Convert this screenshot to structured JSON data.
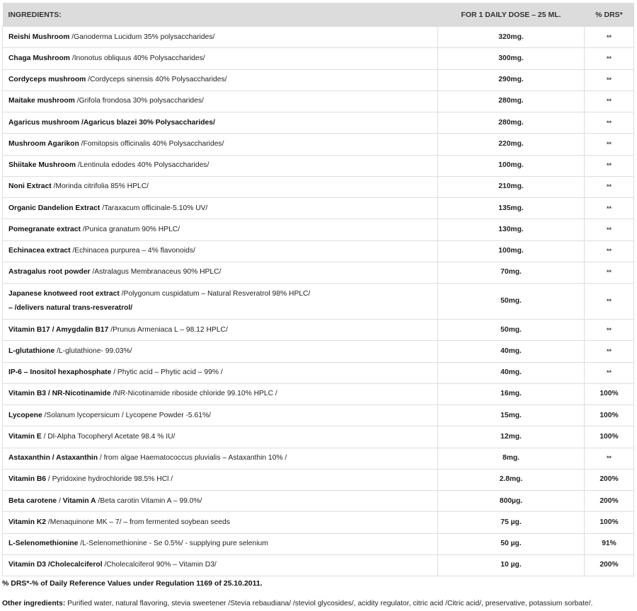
{
  "header": {
    "ingredients": "INGREDIENTS:",
    "dose": "FOR 1 DAILY DOSE – 25 ML.",
    "drs": "% DRS*"
  },
  "rows": [
    {
      "segments": [
        {
          "text": "Reishi Mushroom",
          "bold": true
        },
        {
          "text": " /Ganoderma Lucidum 35% polysaccharides/",
          "bold": false
        }
      ],
      "dose": "320mg.",
      "drs": "**"
    },
    {
      "segments": [
        {
          "text": "Chaga Mushroom",
          "bold": true
        },
        {
          "text": " /Inonotus obliquus 40% Polysaccharides/",
          "bold": false
        }
      ],
      "dose": "300mg.",
      "drs": "**"
    },
    {
      "segments": [
        {
          "text": "Cordyceps mushroom",
          "bold": true
        },
        {
          "text": " /Cordyceps sinensis 40% Polysaccharides/",
          "bold": false
        }
      ],
      "dose": "290mg.",
      "drs": "**"
    },
    {
      "segments": [
        {
          "text": "Maitake mushroom",
          "bold": true
        },
        {
          "text": " /Grifola frondosa 30% polysaccharides/",
          "bold": false
        }
      ],
      "dose": "280mg.",
      "drs": "**"
    },
    {
      "segments": [
        {
          "text": "Agaricus mushroom",
          "bold": true
        },
        {
          "text": " /Agaricus blazei 30% Polysaccharides/",
          "bold": true
        }
      ],
      "dose": "280mg.",
      "drs": "**"
    },
    {
      "segments": [
        {
          "text": "Mushroom Agarikon",
          "bold": true
        },
        {
          "text": " /Fomitopsis officinalis 40% Polysaccharides/",
          "bold": false
        }
      ],
      "dose": "220mg.",
      "drs": "**"
    },
    {
      "segments": [
        {
          "text": "Shiitake Mushroom",
          "bold": true
        },
        {
          "text": " /Lentinula edodes 40% Polysaccharides/",
          "bold": false
        }
      ],
      "dose": "100mg.",
      "drs": "**"
    },
    {
      "segments": [
        {
          "text": "Noni Extract",
          "bold": true
        },
        {
          "text": " /Morinda citrifolia 85% HPLC/",
          "bold": false
        }
      ],
      "dose": "210mg.",
      "drs": "**"
    },
    {
      "segments": [
        {
          "text": "Organic Dandelion Extract",
          "bold": true
        },
        {
          "text": " /Taraxacum officinale-5.10% UV/",
          "bold": false
        }
      ],
      "dose": "135mg.",
      "drs": "**"
    },
    {
      "segments": [
        {
          "text": "Pomegranate extract",
          "bold": true
        },
        {
          "text": " /Punica granatum 90% HPLC/",
          "bold": false
        }
      ],
      "dose": "130mg.",
      "drs": "**"
    },
    {
      "segments": [
        {
          "text": "Echinacea extract",
          "bold": true
        },
        {
          "text": " /Echinacea purpurea – 4% flavonoids/",
          "bold": false
        }
      ],
      "dose": "100mg.",
      "drs": "**"
    },
    {
      "segments": [
        {
          "text": "Astragalus root powder",
          "bold": true
        },
        {
          "text": " /Astralagus Membranaceus 90% HPLC/",
          "bold": false
        }
      ],
      "dose": "70mg.",
      "drs": "**"
    },
    {
      "segments": [
        {
          "text": "Japanese knotweed root extract",
          "bold": true
        },
        {
          "text": " /Polygonum cuspidatum – Natural Resveratrol 98% HPLC/",
          "bold": false
        },
        {
          "text": "– /delivers natural trans-resveratrol/",
          "bold": true,
          "newline": true
        }
      ],
      "dose": "50mg.",
      "drs": "**"
    },
    {
      "segments": [
        {
          "text": "Vitamin B17 / Amygdalin B17",
          "bold": true
        },
        {
          "text": " /Prunus Armeniaca L – 98.12 HPLC/",
          "bold": false
        }
      ],
      "dose": "50mg.",
      "drs": "**"
    },
    {
      "segments": [
        {
          "text": "L-glutathione",
          "bold": true
        },
        {
          "text": " /L-glutathione- 99.03%/",
          "bold": false
        }
      ],
      "dose": "40mg.",
      "drs": "**"
    },
    {
      "segments": [
        {
          "text": "IP-6 – Inositol hexaphosphate",
          "bold": true
        },
        {
          "text": " / Phytic acid – Phytic acid – 99% /",
          "bold": false
        }
      ],
      "dose": "40mg.",
      "drs": "**"
    },
    {
      "segments": [
        {
          "text": "Vitamin B3 / NR-Nicotinamide",
          "bold": true
        },
        {
          "text": " /NR-Nicotinamide riboside chloride 99.10% HPLC /",
          "bold": false
        }
      ],
      "dose": "16mg.",
      "drs": "100%"
    },
    {
      "segments": [
        {
          "text": "Lycopene",
          "bold": true
        },
        {
          "text": " /Solanum lycopersicum / Lycopene Powder -5.61%/",
          "bold": false
        }
      ],
      "dose": "15mg.",
      "drs": "100%"
    },
    {
      "segments": [
        {
          "text": "Vitamin E",
          "bold": true
        },
        {
          "text": " / Dl-Alpha Tocopheryl Acetate 98.4 % IU/",
          "bold": false
        }
      ],
      "dose": "12mg.",
      "drs": "100%"
    },
    {
      "segments": [
        {
          "text": "Astaxanthin / Astaxanthin",
          "bold": true
        },
        {
          "text": " / from algae Haematococcus pluvialis – Astaxanthin 10% /",
          "bold": false
        }
      ],
      "dose": "8mg.",
      "drs": "**"
    },
    {
      "segments": [
        {
          "text": "Vitamin B6",
          "bold": true
        },
        {
          "text": " / Pyridoxine hydrochloride 98.5% HCl /",
          "bold": false
        }
      ],
      "dose": "2.8mg.",
      "drs": "200%"
    },
    {
      "segments": [
        {
          "text": "Beta carotene",
          "bold": true
        },
        {
          "text": " / ",
          "bold": false
        },
        {
          "text": "Vitamin A",
          "bold": true
        },
        {
          "text": " /Beta carotin Vitamin A – 99.0%/",
          "bold": false
        }
      ],
      "dose": "800µg.",
      "drs": "200%"
    },
    {
      "segments": [
        {
          "text": "Vitamin K2",
          "bold": true
        },
        {
          "text": " /Menaquinone MK – 7/ – from fermented soybean seeds",
          "bold": false
        }
      ],
      "dose": "75 µg.",
      "drs": "100%"
    },
    {
      "segments": [
        {
          "text": "L-Selenomethionine",
          "bold": true
        },
        {
          "text": " /L-Selenomethionine - Se 0.5%/ - supplying pure selenium",
          "bold": false
        }
      ],
      "dose": "50 µg.",
      "drs": "91%"
    },
    {
      "segments": [
        {
          "text": "Vitamin D3 /Cholecalciferol",
          "bold": true
        },
        {
          "text": " /Cholecalciferol 90% – Vitamin D3/",
          "bold": false
        }
      ],
      "dose": "10 µg.",
      "drs": "200%"
    }
  ],
  "footnote": "% DRS*-% of Daily Reference Values under Regulation 1169 of 25.10.2011.",
  "other": {
    "label": "Other ingredients:",
    "text": " Purified water, natural flavoring, stevia sweetener /Stevia rebaudiana/ /steviol glycosides/, acidity regulator, citric acid /Citric acid/, preservative, potassium sorbate/."
  }
}
